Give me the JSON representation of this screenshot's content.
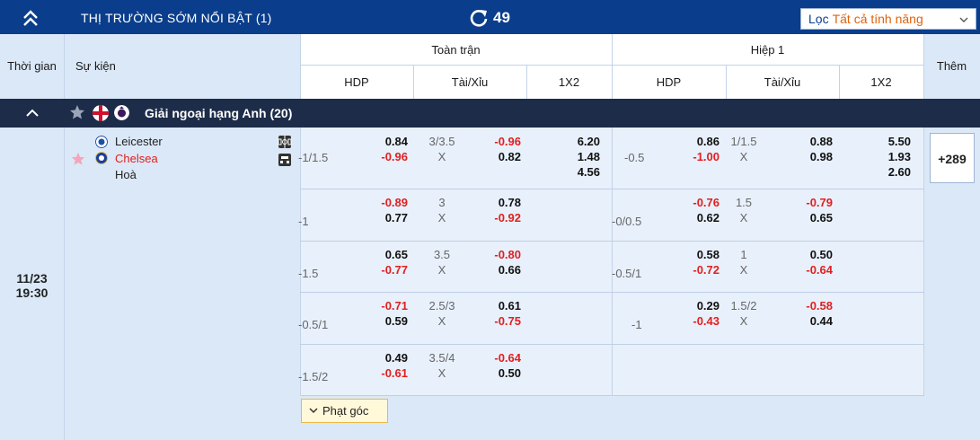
{
  "topbar": {
    "title": "THỊ TRƯỜNG SỚM NỔI BẬT (1)",
    "count": "49",
    "filter_label": "Lọc",
    "filter_value": "Tất cả tính năng"
  },
  "header": {
    "time": "Thời gian",
    "event": "Sự kiện",
    "full_match": "Toàn trận",
    "first_half": "Hiệp 1",
    "more": "Thêm",
    "hdp": "HDP",
    "ou": "Tài/Xỉu",
    "x12": "1X2"
  },
  "league": {
    "name": "Giải ngoại hạng Anh (20)"
  },
  "match": {
    "date": "11/23",
    "time": "19:30",
    "home": "Leicester",
    "away": "Chelsea",
    "draw": "Hoà",
    "more_count": "+289",
    "corner_label": "Phạt góc"
  },
  "rows": [
    {
      "ft_hdp_line": "-1/1.5",
      "ft_hdp_home": "0.84",
      "ft_hdp_away": "-0.96",
      "ft_ou_line": "3/3.5",
      "ft_ou_x": "X",
      "ft_ou_over": "-0.96",
      "ft_ou_under": "0.82",
      "ft_1": "6.20",
      "ft_x": "1.48",
      "ft_2": "4.56",
      "h1_hdp_line": "-0.5",
      "h1_hdp_home": "0.86",
      "h1_hdp_away": "-1.00",
      "h1_ou_line": "1/1.5",
      "h1_ou_x": "X",
      "h1_ou_over": "0.88",
      "h1_ou_under": "0.98",
      "h1_1": "5.50",
      "h1_x": "1.93",
      "h1_2": "2.60"
    },
    {
      "ft_hdp_line": "-1",
      "ft_hdp_home": "-0.89",
      "ft_hdp_away": "0.77",
      "ft_ou_line": "3",
      "ft_ou_x": "X",
      "ft_ou_over": "0.78",
      "ft_ou_under": "-0.92",
      "h1_hdp_line": "-0/0.5",
      "h1_hdp_home": "-0.76",
      "h1_hdp_away": "0.62",
      "h1_ou_line": "1.5",
      "h1_ou_x": "X",
      "h1_ou_over": "-0.79",
      "h1_ou_under": "0.65"
    },
    {
      "ft_hdp_line": "-1.5",
      "ft_hdp_home": "0.65",
      "ft_hdp_away": "-0.77",
      "ft_ou_line": "3.5",
      "ft_ou_x": "X",
      "ft_ou_over": "-0.80",
      "ft_ou_under": "0.66",
      "h1_hdp_line": "-0.5/1",
      "h1_hdp_home": "0.58",
      "h1_hdp_away": "-0.72",
      "h1_ou_line": "1",
      "h1_ou_x": "X",
      "h1_ou_over": "0.50",
      "h1_ou_under": "-0.64"
    },
    {
      "ft_hdp_line": "-0.5/1",
      "ft_hdp_home": "-0.71",
      "ft_hdp_away": "0.59",
      "ft_ou_line": "2.5/3",
      "ft_ou_x": "X",
      "ft_ou_over": "0.61",
      "ft_ou_under": "-0.75",
      "h1_hdp_line": "-1",
      "h1_hdp_home": "0.29",
      "h1_hdp_away": "-0.43",
      "h1_ou_line": "1.5/2",
      "h1_ou_x": "X",
      "h1_ou_over": "-0.58",
      "h1_ou_under": "0.44"
    },
    {
      "ft_hdp_line": "-1.5/2",
      "ft_hdp_home": "0.49",
      "ft_hdp_away": "-0.61",
      "ft_ou_line": "3.5/4",
      "ft_ou_x": "X",
      "ft_ou_over": "-0.64",
      "ft_ou_under": "0.50"
    }
  ],
  "colors": {
    "topbar": "#0a3e8c",
    "league_bar": "#1d2c49",
    "negative": "#e0201f",
    "filter_value": "#e0620d"
  }
}
